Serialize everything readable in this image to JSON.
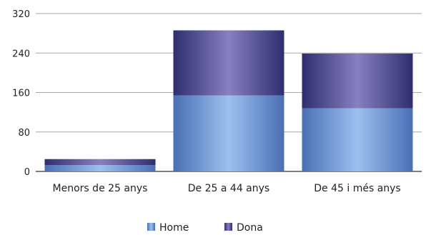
{
  "chart_data": {
    "type": "bar",
    "stacked": true,
    "categories": [
      "Menors de 25 anys",
      "De 25 a 44 anys",
      "De 45 i més anys"
    ],
    "series": [
      {
        "name": "Home",
        "values": [
          13,
          154,
          128
        ],
        "color": "#6f95d6"
      },
      {
        "name": "Dona",
        "values": [
          12,
          132,
          111
        ],
        "color": "#56569e"
      }
    ],
    "ylim": [
      0,
      320
    ],
    "yticks": [
      0,
      80,
      160,
      240,
      320
    ],
    "grid": true,
    "legend_position": "bottom"
  }
}
